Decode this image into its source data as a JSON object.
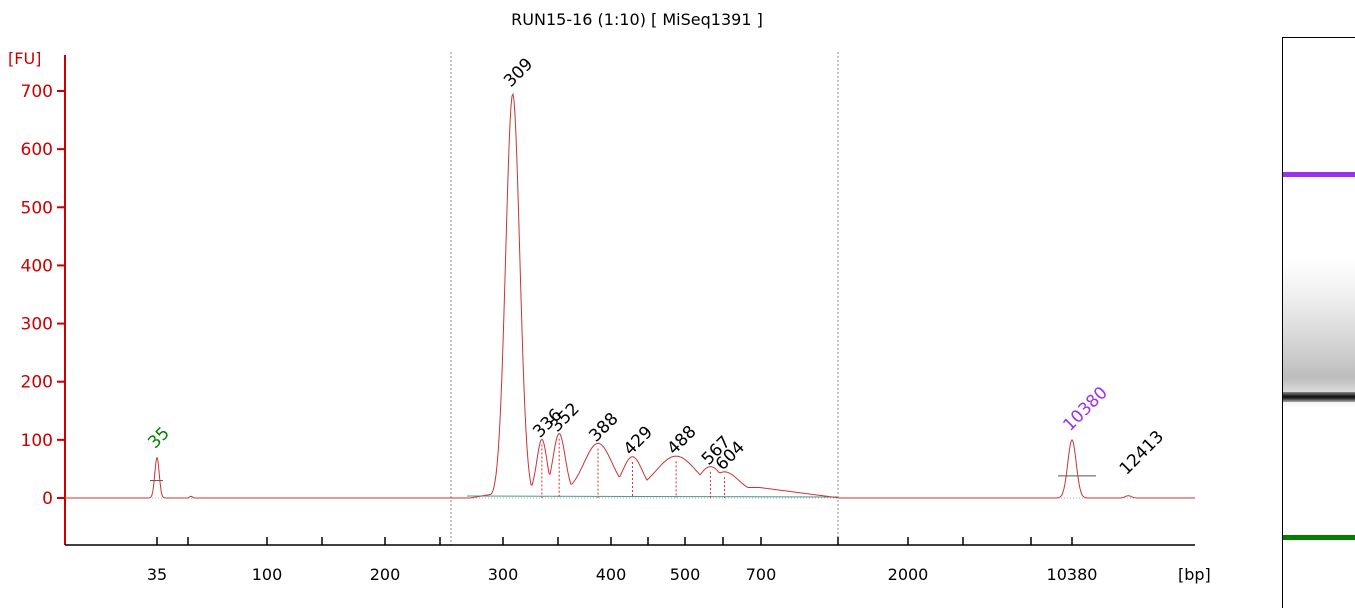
{
  "chart_data": {
    "type": "line",
    "title": "RUN15-16 (1:10)  [ MiSeq1391 ]",
    "ylabel": "[FU]",
    "xlabel": "[bp]",
    "ylim": [
      -75,
      760
    ],
    "yticks": [
      0,
      100,
      200,
      300,
      400,
      500,
      600,
      700
    ],
    "x_tick_labels": [
      "35",
      "100",
      "200",
      "300",
      "400",
      "500",
      "700",
      "2000",
      "10380"
    ],
    "colors": {
      "axis": "#cc0000",
      "trace": "#cc3333",
      "baseline": "#4a9a8a",
      "lower_marker": "#008000",
      "upper_marker": "#9933ee",
      "peak_label": "#000000"
    },
    "marker_peaks": [
      {
        "label": "35",
        "bp": 35,
        "fu": 70,
        "role": "lower"
      },
      {
        "label": "10380",
        "bp": 10380,
        "fu": 100,
        "role": "upper"
      }
    ],
    "peaks": [
      {
        "label": "309",
        "bp": 309,
        "fu": 695
      },
      {
        "label": "336",
        "bp": 336,
        "fu": 92
      },
      {
        "label": "352",
        "bp": 352,
        "fu": 102
      },
      {
        "label": "388",
        "bp": 388,
        "fu": 85
      },
      {
        "label": "429",
        "bp": 429,
        "fu": 62
      },
      {
        "label": "488",
        "bp": 488,
        "fu": 63
      },
      {
        "label": "567",
        "bp": 567,
        "fu": 45
      },
      {
        "label": "604",
        "bp": 604,
        "fu": 36
      },
      {
        "label": "12413",
        "bp": 12413,
        "fu": 4
      }
    ],
    "region_bp": [
      250,
      860
    ]
  }
}
